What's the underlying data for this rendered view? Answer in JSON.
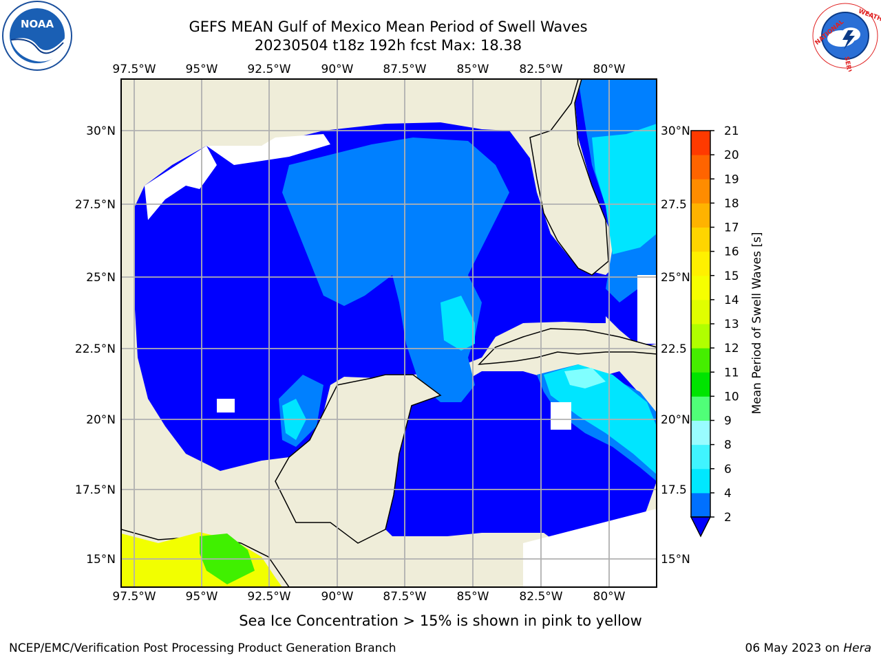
{
  "title_line1": "GEFS MEAN Gulf of Mexico Mean Period of Swell Waves",
  "title_line2": "20230504 t18z 192h fcst   Max: 18.38",
  "ice_note": "Sea Ice Concentration > 15% is shown in pink to yellow",
  "credit": "NCEP/EMC/Verification Post Processing Product Generation Branch",
  "date_text": "06 May 2023 on ",
  "date_host": "Hera",
  "colorbar": {
    "label": "Mean Period of Swell Waves [s]",
    "ticks": [
      "21",
      "20",
      "19",
      "18",
      "17",
      "16",
      "15",
      "14",
      "13",
      "12",
      "11",
      "10",
      "9",
      "8",
      "6",
      "4",
      "2"
    ],
    "colors": [
      "#0070ff",
      "#00e7ff",
      "#40f4ff",
      "#99fcff",
      "#50ff78",
      "#00e400",
      "#45ee00",
      "#b0ff00",
      "#e0ff00",
      "#f6ff00",
      "#fff000",
      "#ffd500",
      "#ffb300",
      "#ff8c00",
      "#ff6400",
      "#ff3a00",
      "#ff0000"
    ],
    "extend_color": "#0000ff"
  },
  "map": {
    "lon_ticks": [
      "97.5°W",
      "95°W",
      "92.5°W",
      "90°W",
      "87.5°W",
      "85°W",
      "82.5°W",
      "80°W"
    ],
    "lat_ticks_left": [
      "30°N",
      "27.5°N",
      "25°N",
      "22.5°N",
      "20°N",
      "17.5°N",
      "15°N"
    ],
    "lat_ticks_right": [
      "30°N",
      "27.5",
      "25°N",
      "22.5",
      "20°N",
      "17.5",
      "15°N"
    ],
    "colors": {
      "land": "#efedd9",
      "deep": "#0000ff",
      "mid": "#0080ff",
      "cyan": "#00e5ff",
      "light_cyan": "#80ffff",
      "grid": "#b0b0b0",
      "ice_yellow": "#f2ff00",
      "ice_green": "#40f000"
    }
  },
  "logos": {
    "noaa_text": "NOAA",
    "nws_text": "NATIONAL WEATHER SERVICE"
  }
}
